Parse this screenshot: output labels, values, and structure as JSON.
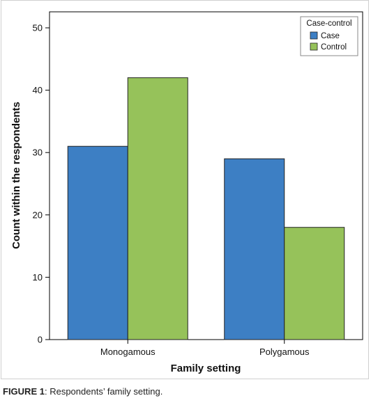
{
  "chart_data": {
    "type": "bar",
    "categories": [
      "Monogamous",
      "Polygamous"
    ],
    "series": [
      {
        "name": "Case",
        "values": [
          31,
          29
        ],
        "color": "#3d7fc4"
      },
      {
        "name": "Control",
        "values": [
          42,
          18
        ],
        "color": "#96c25a"
      }
    ],
    "xlabel": "Family setting",
    "ylabel": "Count within the respondents",
    "ylim": [
      0,
      50
    ],
    "yticks": [
      "0",
      "10",
      "20",
      "30",
      "40",
      "50"
    ],
    "grid": false,
    "legend": {
      "title": "Case-control",
      "placement": "top-right"
    }
  },
  "caption": {
    "label": "FIGURE 1",
    "separator": ": ",
    "text": "Respondents’ family setting."
  }
}
